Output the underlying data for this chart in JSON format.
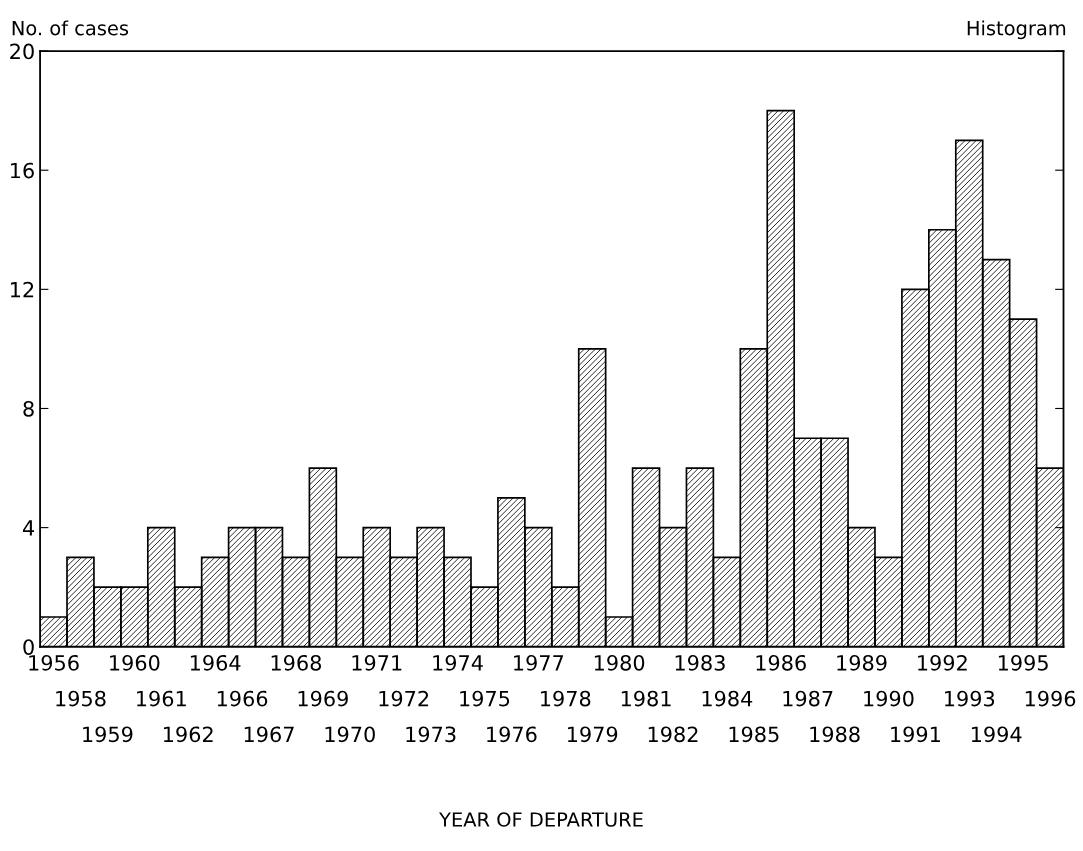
{
  "chart_data": {
    "type": "bar",
    "title": "Histogram",
    "ylabel": "No. of cases",
    "xlabel": "YEAR OF DEPARTURE",
    "categories": [
      "1956",
      "1958",
      "1959",
      "1960",
      "1961",
      "1962",
      "1964",
      "1966",
      "1967",
      "1968",
      "1969",
      "1970",
      "1971",
      "1972",
      "1973",
      "1974",
      "1975",
      "1976",
      "1977",
      "1978",
      "1979",
      "1980",
      "1981",
      "1982",
      "1983",
      "1984",
      "1985",
      "1986",
      "1987",
      "1988",
      "1989",
      "1990",
      "1991",
      "1992",
      "1993",
      "1994",
      "1995",
      "1996"
    ],
    "values": [
      1,
      3,
      2,
      2,
      4,
      2,
      3,
      4,
      4,
      3,
      6,
      3,
      4,
      3,
      4,
      3,
      2,
      5,
      4,
      2,
      10,
      1,
      6,
      4,
      6,
      3,
      10,
      18,
      7,
      7,
      4,
      3,
      12,
      14,
      17,
      13,
      11,
      6
    ],
    "color": "#000000",
    "ylim": [
      0,
      20
    ],
    "yticks": [
      0,
      4,
      8,
      12,
      16,
      20
    ],
    "grid": false
  }
}
